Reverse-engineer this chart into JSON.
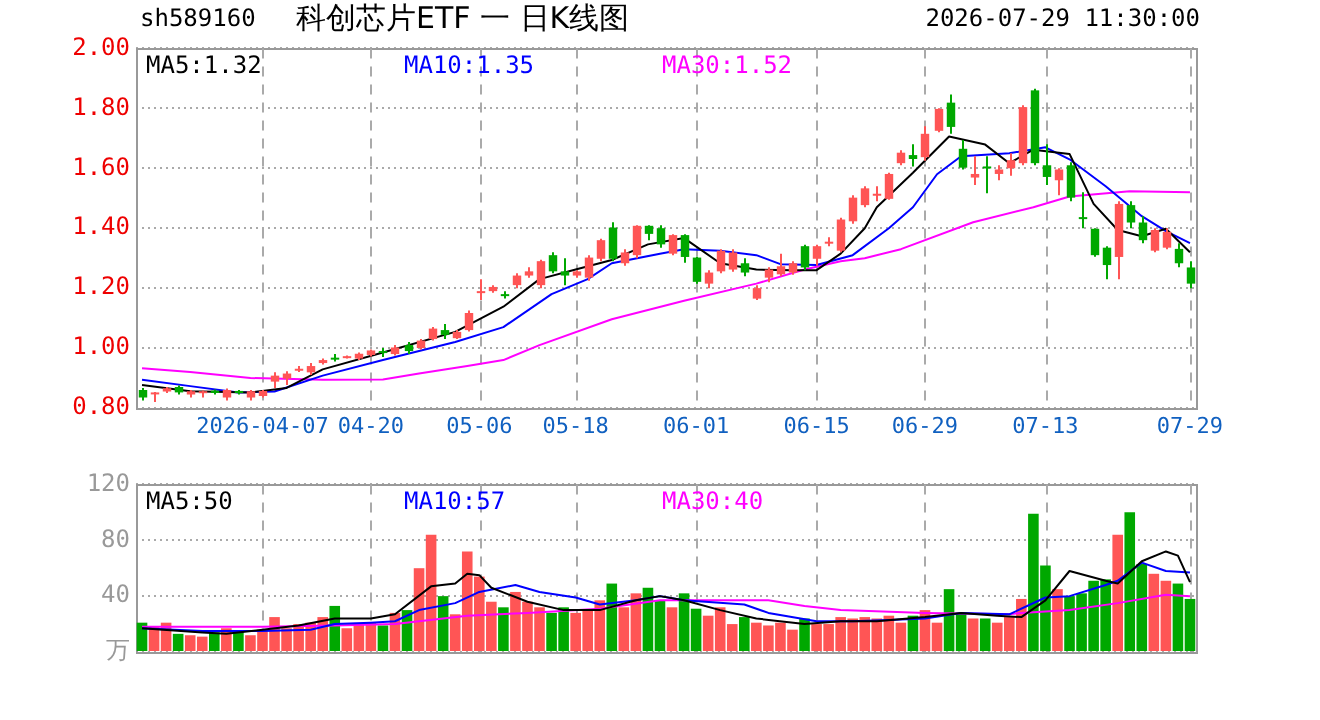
{
  "chart_data": [
    {
      "type": "candlestick",
      "title": "科创芯片ETF 一 日K线图",
      "annotations": [
        "sh589160",
        "2026-07-29 11:30:00"
      ],
      "categories": [
        null,
        null,
        null,
        null,
        null,
        null,
        null,
        null,
        null,
        null,
        "2026-04-07",
        null,
        null,
        null,
        null,
        null,
        null,
        null,
        null,
        "04-20",
        null,
        null,
        null,
        null,
        null,
        null,
        null,
        null,
        "05-06",
        null,
        null,
        null,
        null,
        null,
        null,
        null,
        "05-18",
        null,
        null,
        null,
        null,
        null,
        null,
        null,
        null,
        null,
        "06-01",
        null,
        null,
        null,
        null,
        null,
        null,
        null,
        null,
        null,
        "06-15",
        null,
        null,
        null,
        null,
        null,
        null,
        null,
        null,
        "06-29",
        null,
        null,
        null,
        null,
        null,
        null,
        null,
        null,
        null,
        "07-13",
        null,
        null,
        null,
        null,
        null,
        null,
        null,
        null,
        null,
        null,
        null,
        "07-29"
      ],
      "ohlc": [
        [
          0.86,
          0.867,
          0.825,
          0.835
        ],
        [
          0.849,
          0.853,
          0.82,
          0.852
        ],
        [
          0.855,
          0.87,
          0.85,
          0.866
        ],
        [
          0.87,
          0.875,
          0.845,
          0.852
        ],
        [
          0.845,
          0.86,
          0.835,
          0.856
        ],
        [
          0.85,
          0.858,
          0.835,
          0.856
        ],
        [
          0.858,
          0.862,
          0.845,
          0.85
        ],
        [
          0.835,
          0.865,
          0.825,
          0.86
        ],
        [
          0.857,
          0.86,
          0.845,
          0.85
        ],
        [
          0.835,
          0.86,
          0.825,
          0.856
        ],
        [
          0.84,
          0.86,
          0.835,
          0.857
        ],
        [
          0.888,
          0.919,
          0.867,
          0.908
        ],
        [
          0.898,
          0.923,
          0.877,
          0.915
        ],
        [
          0.925,
          0.94,
          0.92,
          0.931
        ],
        [
          0.919,
          0.95,
          0.91,
          0.94
        ],
        [
          0.95,
          0.965,
          0.945,
          0.96
        ],
        [
          0.968,
          0.98,
          0.955,
          0.965
        ],
        [
          0.97,
          0.975,
          0.965,
          0.973
        ],
        [
          0.965,
          0.985,
          0.96,
          0.981
        ],
        [
          0.977,
          0.995,
          0.972,
          0.992
        ],
        [
          0.99,
          1.0,
          0.97,
          0.985
        ],
        [
          0.98,
          1.01,
          0.975,
          1.002
        ],
        [
          1.01,
          1.02,
          0.98,
          0.99
        ],
        [
          1.0,
          1.03,
          0.995,
          1.025
        ],
        [
          1.03,
          1.07,
          1.025,
          1.065
        ],
        [
          1.06,
          1.08,
          1.03,
          1.044
        ],
        [
          1.033,
          1.06,
          1.03,
          1.054
        ],
        [
          1.06,
          1.125,
          1.055,
          1.117
        ],
        [
          1.185,
          1.23,
          1.16,
          1.19
        ],
        [
          1.19,
          1.21,
          1.185,
          1.204
        ],
        [
          1.18,
          1.19,
          1.165,
          1.175
        ],
        [
          1.21,
          1.25,
          1.2,
          1.242
        ],
        [
          1.242,
          1.27,
          1.235,
          1.256
        ],
        [
          1.21,
          1.295,
          1.2,
          1.29
        ],
        [
          1.31,
          1.32,
          1.25,
          1.256
        ],
        [
          1.256,
          1.3,
          1.21,
          1.242
        ],
        [
          1.242,
          1.26,
          1.235,
          1.256
        ],
        [
          1.235,
          1.31,
          1.225,
          1.302
        ],
        [
          1.298,
          1.365,
          1.29,
          1.36
        ],
        [
          1.402,
          1.42,
          1.29,
          1.298
        ],
        [
          1.283,
          1.33,
          1.275,
          1.319
        ],
        [
          1.31,
          1.41,
          1.3,
          1.408
        ],
        [
          1.408,
          1.41,
          1.36,
          1.381
        ],
        [
          1.4,
          1.41,
          1.335,
          1.346
        ],
        [
          1.315,
          1.38,
          1.31,
          1.377
        ],
        [
          1.377,
          1.38,
          1.285,
          1.304
        ],
        [
          1.302,
          1.305,
          1.215,
          1.221
        ],
        [
          1.215,
          1.26,
          1.2,
          1.252
        ],
        [
          1.256,
          1.33,
          1.25,
          1.325
        ],
        [
          1.262,
          1.33,
          1.255,
          1.319
        ],
        [
          1.283,
          1.3,
          1.24,
          1.252
        ],
        [
          1.165,
          1.21,
          1.16,
          1.2
        ],
        [
          1.235,
          1.27,
          1.22,
          1.262
        ],
        [
          1.246,
          1.315,
          1.24,
          1.273
        ],
        [
          1.252,
          1.29,
          1.245,
          1.283
        ],
        [
          1.34,
          1.345,
          1.26,
          1.269
        ],
        [
          1.298,
          1.345,
          1.275,
          1.34
        ],
        [
          1.35,
          1.37,
          1.34,
          1.355
        ],
        [
          1.325,
          1.435,
          1.32,
          1.429
        ],
        [
          1.423,
          1.51,
          1.415,
          1.502
        ],
        [
          1.477,
          1.54,
          1.47,
          1.533
        ],
        [
          1.51,
          1.54,
          1.49,
          1.515
        ],
        [
          1.498,
          1.585,
          1.495,
          1.581
        ],
        [
          1.617,
          1.66,
          1.61,
          1.652
        ],
        [
          1.644,
          1.68,
          1.606,
          1.631
        ],
        [
          1.637,
          1.74,
          1.625,
          1.715
        ],
        [
          1.725,
          1.8,
          1.72,
          1.798
        ],
        [
          1.819,
          1.846,
          1.715,
          1.738
        ],
        [
          1.665,
          1.694,
          1.596,
          1.602
        ],
        [
          1.569,
          1.64,
          1.544,
          1.581
        ],
        [
          1.606,
          1.64,
          1.517,
          1.6
        ],
        [
          1.581,
          1.61,
          1.56,
          1.596
        ],
        [
          1.6,
          1.65,
          1.575,
          1.627
        ],
        [
          1.617,
          1.81,
          1.61,
          1.804
        ],
        [
          1.86,
          1.865,
          1.61,
          1.617
        ],
        [
          1.61,
          1.68,
          1.544,
          1.571
        ],
        [
          1.56,
          1.6,
          1.51,
          1.596
        ],
        [
          1.61,
          1.62,
          1.49,
          1.502
        ],
        [
          1.437,
          1.52,
          1.4,
          1.433
        ],
        [
          1.398,
          1.4,
          1.305,
          1.31
        ],
        [
          1.335,
          1.34,
          1.23,
          1.277
        ],
        [
          1.304,
          1.49,
          1.23,
          1.481
        ],
        [
          1.477,
          1.49,
          1.4,
          1.419
        ],
        [
          1.419,
          1.44,
          1.35,
          1.36
        ],
        [
          1.325,
          1.4,
          1.32,
          1.394
        ],
        [
          1.335,
          1.4,
          1.33,
          1.388
        ],
        [
          1.331,
          1.35,
          1.27,
          1.283
        ],
        [
          1.269,
          1.29,
          1.2,
          1.215
        ]
      ],
      "colors": [
        "#00a800",
        "#ff5555",
        "#ff5555",
        "#00a800",
        "#ff5555",
        "#ff5555",
        "#00a800",
        "#ff5555",
        "#00a800",
        "#ff5555",
        "#ff5555",
        "#ff5555",
        "#ff5555",
        "#ff5555",
        "#ff5555",
        "#ff5555",
        "#00a800",
        "#ff5555",
        "#ff5555",
        "#ff5555",
        "#00a800",
        "#ff5555",
        "#00a800",
        "#ff5555",
        "#ff5555",
        "#00a800",
        "#ff5555",
        "#ff5555",
        "#ff5555",
        "#ff5555",
        "#00a800",
        "#ff5555",
        "#ff5555",
        "#ff5555",
        "#00a800",
        "#00a800",
        "#ff5555",
        "#ff5555",
        "#ff5555",
        "#00a800",
        "#ff5555",
        "#ff5555",
        "#00a800",
        "#00a800",
        "#ff5555",
        "#00a800",
        "#00a800",
        "#ff5555",
        "#ff5555",
        "#ff5555",
        "#00a800",
        "#ff5555",
        "#ff5555",
        "#ff5555",
        "#ff5555",
        "#00a800",
        "#ff5555",
        "#ff5555",
        "#ff5555",
        "#ff5555",
        "#ff5555",
        "#ff5555",
        "#ff5555",
        "#ff5555",
        "#00a800",
        "#ff5555",
        "#ff5555",
        "#00a800",
        "#00a800",
        "#ff5555",
        "#00a800",
        "#ff5555",
        "#ff5555",
        "#ff5555",
        "#00a800",
        "#00a800",
        "#ff5555",
        "#00a800",
        "#00a800",
        "#00a800",
        "#00a800",
        "#ff5555",
        "#00a800",
        "#00a800",
        "#ff5555",
        "#ff5555",
        "#00a800",
        "#00a800"
      ],
      "series": [
        {
          "name": "MA5:1.32",
          "type": "line",
          "color": "#000000",
          "values": [
            0.877,
            null,
            null,
            null,
            0.856,
            null,
            null,
            null,
            null,
            0.852,
            null,
            null,
            0.867,
            null,
            null,
            0.929,
            null,
            null,
            null,
            null,
            0.985,
            null,
            null,
            null,
            null,
            null,
            1.054,
            null,
            null,
            null,
            1.138,
            null,
            null,
            1.23,
            null,
            null,
            1.262,
            null,
            null,
            1.294,
            null,
            null,
            1.346,
            null,
            null,
            1.367,
            null,
            null,
            1.283,
            null,
            null,
            1.262,
            null,
            null,
            1.26,
            null,
            1.26,
            null,
            1.315,
            null,
            1.4,
            1.47,
            null,
            null,
            1.585,
            null,
            null,
            1.706,
            null,
            null,
            1.679,
            null,
            1.617,
            null,
            1.662,
            null,
            null,
            1.648,
            null,
            1.481,
            null,
            1.394,
            null,
            1.373,
            null,
            1.398,
            null,
            1.32
          ]
        },
        {
          "name": "MA10:1.35",
          "type": "line",
          "color": "#0000ff",
          "values": [
            0.894,
            null,
            null,
            null,
            0.873,
            null,
            null,
            null,
            0.852,
            null,
            null,
            0.855,
            null,
            null,
            null,
            0.908,
            null,
            null,
            null,
            null,
            0.96,
            null,
            null,
            null,
            null,
            null,
            1.02,
            null,
            null,
            null,
            1.07,
            null,
            null,
            null,
            1.18,
            null,
            null,
            1.23,
            null,
            1.283,
            null,
            null,
            null,
            1.315,
            null,
            1.33,
            null,
            null,
            1.325,
            null,
            null,
            1.31,
            null,
            1.28,
            null,
            null,
            1.277,
            null,
            null,
            1.31,
            null,
            null,
            1.4,
            null,
            1.47,
            null,
            1.58,
            null,
            1.64,
            null,
            null,
            null,
            1.65,
            null,
            null,
            1.67,
            null,
            1.63,
            null,
            null,
            1.54,
            null,
            null,
            1.44,
            null,
            1.39,
            null,
            1.35
          ]
        },
        {
          "name": "MA30:1.52",
          "type": "line",
          "color": "#ff00ff",
          "values": [
            0.933,
            null,
            null,
            null,
            0.92,
            null,
            null,
            null,
            null,
            0.9,
            null,
            null,
            null,
            null,
            null,
            0.894,
            null,
            null,
            null,
            null,
            0.895,
            null,
            null,
            0.915,
            null,
            null,
            null,
            0.94,
            null,
            null,
            0.96,
            null,
            null,
            1.01,
            null,
            null,
            null,
            null,
            null,
            1.096,
            null,
            null,
            null,
            null,
            null,
            1.158,
            null,
            null,
            null,
            null,
            null,
            1.215,
            null,
            null,
            null,
            1.262,
            null,
            null,
            1.29,
            null,
            1.3,
            null,
            null,
            1.33,
            null,
            null,
            null,
            null,
            null,
            1.42,
            null,
            null,
            null,
            null,
            1.47,
            null,
            null,
            1.506,
            null,
            null,
            null,
            null,
            1.523,
            null,
            null,
            null,
            null,
            1.52
          ]
        }
      ],
      "ylim": [
        0.8,
        2.0
      ],
      "yticks": [
        {
          "value": 0.8,
          "label": "0.80"
        },
        {
          "value": 1.0,
          "label": "1.00"
        },
        {
          "value": 1.2,
          "label": "1.20"
        },
        {
          "value": 1.4,
          "label": "1.40"
        },
        {
          "value": 1.6,
          "label": "1.60"
        },
        {
          "value": 1.8,
          "label": "1.80"
        },
        {
          "value": 2.0,
          "label": "2.00"
        }
      ],
      "grid": true,
      "legend": "top left"
    },
    {
      "type": "bar",
      "categories": [
        null,
        null,
        null,
        null,
        null,
        null,
        null,
        null,
        null,
        null,
        null,
        null,
        null,
        null,
        null,
        null,
        null,
        null,
        null,
        null,
        null,
        null,
        null,
        null,
        null,
        null,
        null,
        null,
        null,
        null,
        null,
        null,
        null,
        null,
        null,
        null,
        null,
        null,
        null,
        null,
        null,
        null,
        null,
        null,
        null,
        null,
        null,
        null,
        null,
        null,
        null,
        null,
        null,
        null,
        null,
        null,
        null,
        null,
        null,
        null,
        null,
        null,
        null,
        null,
        null,
        null,
        null,
        null,
        null,
        null,
        null,
        null,
        null,
        null,
        null,
        null,
        null,
        null,
        null,
        null,
        null,
        null,
        null,
        null,
        null,
        null,
        null,
        null
      ],
      "series": [
        {
          "type": "bar",
          "values": [
            21,
            18,
            21,
            13,
            12,
            11,
            14,
            17,
            15,
            12,
            16,
            25,
            17,
            20,
            21,
            25,
            33,
            17,
            20,
            21,
            19,
            28,
            30,
            60,
            84,
            40,
            27,
            72,
            54,
            36,
            32,
            43,
            36,
            32,
            28,
            32,
            28,
            30,
            37,
            49,
            32,
            42,
            46,
            37,
            32,
            42,
            31,
            26,
            32,
            20,
            25,
            21,
            19,
            21,
            16,
            24,
            20,
            20,
            25,
            24,
            25,
            24,
            26,
            21,
            26,
            30,
            21,
            45,
            28,
            24,
            24,
            21,
            25,
            38,
            99,
            62,
            45,
            40,
            42,
            51,
            52,
            84,
            100,
            63,
            56,
            51,
            49,
            38
          ],
          "colors": [
            "#00a800",
            "#ff5555",
            "#ff5555",
            "#00a800",
            "#ff5555",
            "#ff5555",
            "#00a800",
            "#ff5555",
            "#00a800",
            "#ff5555",
            "#ff5555",
            "#ff5555",
            "#ff5555",
            "#ff5555",
            "#ff5555",
            "#ff5555",
            "#00a800",
            "#ff5555",
            "#ff5555",
            "#ff5555",
            "#00a800",
            "#ff5555",
            "#00a800",
            "#ff5555",
            "#ff5555",
            "#00a800",
            "#ff5555",
            "#ff5555",
            "#ff5555",
            "#ff5555",
            "#00a800",
            "#ff5555",
            "#ff5555",
            "#ff5555",
            "#00a800",
            "#00a800",
            "#ff5555",
            "#ff5555",
            "#ff5555",
            "#00a800",
            "#ff5555",
            "#ff5555",
            "#00a800",
            "#00a800",
            "#ff5555",
            "#00a800",
            "#00a800",
            "#ff5555",
            "#ff5555",
            "#ff5555",
            "#00a800",
            "#ff5555",
            "#ff5555",
            "#ff5555",
            "#ff5555",
            "#00a800",
            "#ff5555",
            "#ff5555",
            "#ff5555",
            "#ff5555",
            "#ff5555",
            "#ff5555",
            "#ff5555",
            "#ff5555",
            "#00a800",
            "#ff5555",
            "#ff5555",
            "#00a800",
            "#00a800",
            "#ff5555",
            "#00a800",
            "#ff5555",
            "#ff5555",
            "#ff5555",
            "#00a800",
            "#00a800",
            "#ff5555",
            "#00a800",
            "#00a800",
            "#00a800",
            "#00a800",
            "#ff5555",
            "#00a800",
            "#00a800",
            "#ff5555",
            "#ff5555",
            "#00a800",
            "#00a800"
          ]
        },
        {
          "name": "MA5:50",
          "type": "line",
          "color": "#000000",
          "values": [
            17,
            null,
            null,
            null,
            null,
            14,
            null,
            13,
            null,
            null,
            16,
            null,
            null,
            19,
            null,
            null,
            24,
            null,
            null,
            24,
            null,
            27,
            null,
            null,
            47,
            null,
            49,
            56,
            55,
            46,
            null,
            null,
            36,
            null,
            null,
            30,
            null,
            null,
            30,
            null,
            null,
            37,
            null,
            40,
            null,
            37,
            null,
            null,
            30,
            null,
            null,
            24,
            null,
            null,
            null,
            20,
            null,
            null,
            22,
            null,
            null,
            22,
            null,
            null,
            null,
            25,
            null,
            null,
            28,
            null,
            null,
            26,
            null,
            25,
            null,
            37,
            null,
            58,
            null,
            null,
            51,
            49,
            null,
            65,
            null,
            72,
            69,
            50
          ]
        },
        {
          "name": "MA10:57",
          "type": "line",
          "color": "#0000ff",
          "values": [
            17,
            null,
            null,
            null,
            null,
            15,
            null,
            null,
            null,
            null,
            15,
            null,
            null,
            null,
            16,
            null,
            20,
            null,
            null,
            21,
            null,
            22,
            null,
            30,
            null,
            null,
            35,
            null,
            43,
            null,
            null,
            48,
            null,
            43,
            null,
            null,
            39,
            null,
            34,
            null,
            null,
            37,
            null,
            40,
            null,
            37,
            null,
            null,
            null,
            null,
            34,
            null,
            28,
            null,
            null,
            null,
            22,
            null,
            null,
            22,
            null,
            null,
            23,
            null,
            null,
            24,
            null,
            null,
            28,
            null,
            null,
            null,
            27,
            null,
            null,
            39,
            null,
            40,
            null,
            null,
            48,
            51,
            null,
            64,
            null,
            58,
            null,
            57
          ]
        },
        {
          "name": "MA30:40",
          "type": "line",
          "color": "#ff00ff",
          "values": [
            18,
            null,
            null,
            null,
            null,
            null,
            null,
            null,
            null,
            null,
            18,
            null,
            null,
            null,
            null,
            null,
            19,
            null,
            null,
            null,
            null,
            20,
            null,
            22,
            null,
            null,
            null,
            26,
            null,
            null,
            null,
            null,
            28,
            null,
            null,
            null,
            null,
            null,
            31,
            null,
            null,
            null,
            null,
            37,
            null,
            null,
            null,
            null,
            null,
            null,
            null,
            null,
            37,
            null,
            null,
            33,
            null,
            null,
            30,
            null,
            null,
            null,
            null,
            null,
            null,
            28,
            null,
            null,
            null,
            null,
            null,
            null,
            27,
            28,
            null,
            null,
            null,
            30,
            null,
            null,
            null,
            35,
            null,
            null,
            null,
            41,
            null,
            40
          ]
        }
      ],
      "ylim": [
        0,
        120
      ],
      "yticks": [
        {
          "value": 0,
          "label": "万"
        },
        40,
        80,
        120
      ],
      "grid": true,
      "legend": "top left",
      "tick_labels": "y"
    }
  ]
}
